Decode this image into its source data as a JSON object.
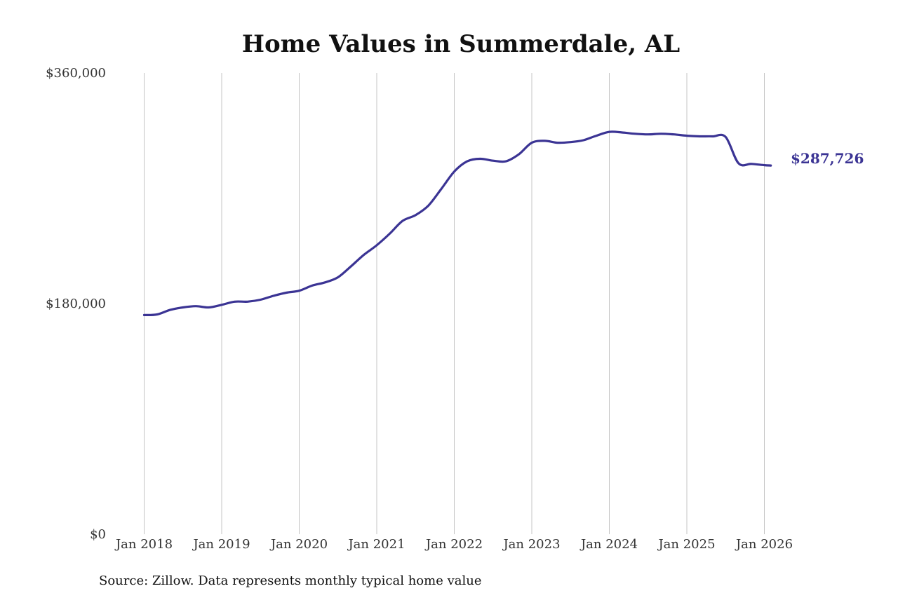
{
  "chart_data": {
    "type": "line",
    "title": "Home Values in Summerdale, AL",
    "source": "Source: Zillow. Data represents monthly typical home value",
    "xlabel": "",
    "ylabel": "",
    "ylim": [
      0,
      360000
    ],
    "y_ticks": [
      {
        "value": 0,
        "label": "$0"
      },
      {
        "value": 180000,
        "label": "$180,000"
      },
      {
        "value": 360000,
        "label": "$360,000"
      }
    ],
    "x_ticks": [
      {
        "value": "2018-01",
        "label": "Jan 2018"
      },
      {
        "value": "2019-01",
        "label": "Jan 2019"
      },
      {
        "value": "2020-01",
        "label": "Jan 2020"
      },
      {
        "value": "2021-01",
        "label": "Jan 2021"
      },
      {
        "value": "2022-01",
        "label": "Jan 2022"
      },
      {
        "value": "2023-01",
        "label": "Jan 2023"
      },
      {
        "value": "2024-01",
        "label": "Jan 2024"
      },
      {
        "value": "2025-01",
        "label": "Jan 2025"
      },
      {
        "value": "2026-01",
        "label": "Jan 2026"
      }
    ],
    "grid": "vertical",
    "line_color": "#3b3494",
    "end_label": "$287,726",
    "series": [
      {
        "x": [
          "2018-01",
          "2018-03",
          "2018-05",
          "2018-07",
          "2018-09",
          "2018-11",
          "2019-01",
          "2019-03",
          "2019-05",
          "2019-07",
          "2019-09",
          "2019-11",
          "2020-01",
          "2020-03",
          "2020-05",
          "2020-07",
          "2020-09",
          "2020-11",
          "2021-01",
          "2021-03",
          "2021-05",
          "2021-07",
          "2021-09",
          "2021-11",
          "2022-01",
          "2022-03",
          "2022-05",
          "2022-07",
          "2022-09",
          "2022-11",
          "2023-01",
          "2023-03",
          "2023-05",
          "2023-07",
          "2023-09",
          "2023-11",
          "2024-01",
          "2024-03",
          "2024-05",
          "2024-07",
          "2024-09",
          "2024-11",
          "2025-01",
          "2025-03",
          "2025-05",
          "2025-07",
          "2025-09",
          "2025-11",
          "2026-01",
          "2026-02"
        ],
        "y": [
          171000,
          171500,
          175000,
          177000,
          178000,
          177000,
          179000,
          181500,
          181500,
          183000,
          186000,
          188500,
          190000,
          194000,
          196500,
          200500,
          209000,
          218000,
          225500,
          234500,
          244500,
          249000,
          256500,
          269500,
          283000,
          291000,
          293000,
          291500,
          291000,
          296500,
          305500,
          307000,
          305500,
          306000,
          307500,
          311000,
          314000,
          313500,
          312500,
          312000,
          312500,
          312000,
          311000,
          310500,
          310500,
          310000,
          289500,
          289000,
          288000,
          287726
        ]
      }
    ]
  }
}
